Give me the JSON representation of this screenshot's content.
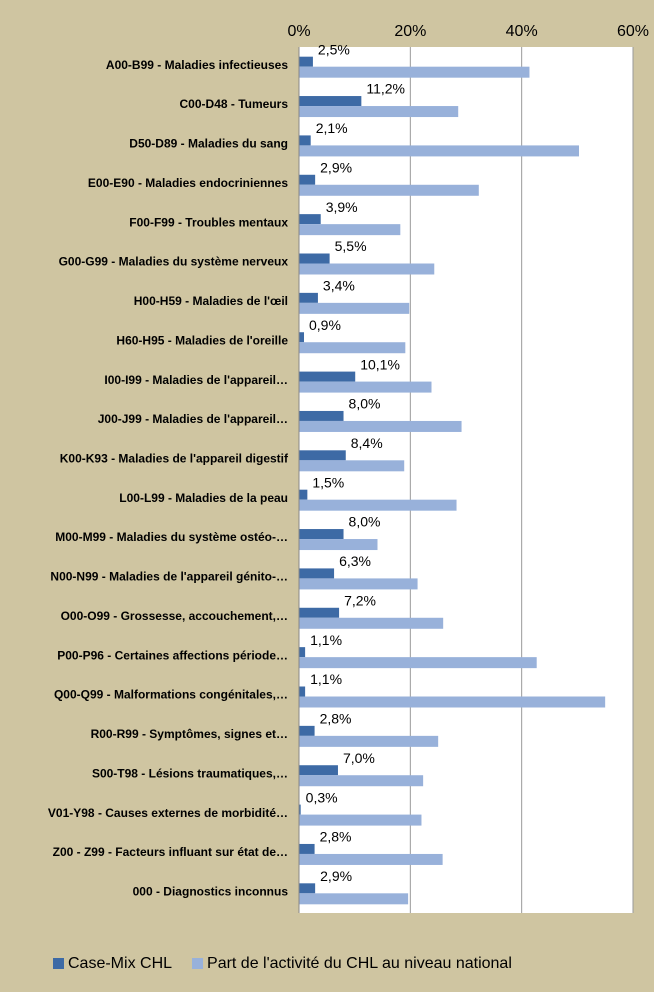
{
  "chart_data": {
    "type": "barh",
    "categories": [
      "A00-B99 - Maladies infectieuses",
      "C00-D48 - Tumeurs",
      "D50-D89 - Maladies du sang",
      "E00-E90 - Maladies endocriniennes",
      "F00-F99 - Troubles mentaux",
      "G00-G99 - Maladies du système nerveux",
      "H00-H59 - Maladies de l'œil",
      "H60-H95 - Maladies de l'oreille",
      "I00-I99 - Maladies de l'appareil…",
      "J00-J99 - Maladies de l'appareil…",
      "K00-K93 - Maladies de l'appareil digestif",
      "L00-L99 - Maladies de la peau",
      "M00-M99 - Maladies du système ostéo-…",
      "N00-N99 - Maladies de l'appareil génito-…",
      "O00-O99 - Grossesse, accouchement,…",
      "P00-P96 - Certaines affections période…",
      "Q00-Q99 - Malformations congénitales,…",
      "R00-R99 - Symptômes, signes et…",
      "S00-T98 - Lésions traumatiques,…",
      "V01-Y98 - Causes externes de morbidité…",
      "Z00 - Z99 - Facteurs influant sur état de…",
      "000 - Diagnostics inconnus"
    ],
    "series": [
      {
        "name": "Case-Mix CHL",
        "color": "#3d6aa5",
        "values": [
          2.5,
          11.2,
          2.1,
          2.9,
          3.9,
          5.5,
          3.4,
          0.9,
          10.1,
          8.0,
          8.4,
          1.5,
          8.0,
          6.3,
          7.2,
          1.1,
          1.1,
          2.8,
          7.0,
          0.3,
          2.8,
          2.9
        ],
        "value_labels": [
          "2,5%",
          "11,2%",
          "2,1%",
          "2,9%",
          "3,9%",
          "5,5%",
          "3,4%",
          "0,9%",
          "10,1%",
          "8,0%",
          "8,4%",
          "1,5%",
          "8,0%",
          "6,3%",
          "7,2%",
          "1,1%",
          "1,1%",
          "2,8%",
          "7,0%",
          "0,3%",
          "2,8%",
          "2,9%"
        ]
      },
      {
        "name": "Part de l'activité du CHL au niveau national",
        "color": "#98b1da",
        "values": [
          41.4,
          28.6,
          50.3,
          32.3,
          18.2,
          24.3,
          19.8,
          19.1,
          23.8,
          29.2,
          18.9,
          28.3,
          14.1,
          21.3,
          25.9,
          42.7,
          55.0,
          25.0,
          22.3,
          22.0,
          25.8,
          19.6
        ]
      }
    ],
    "xlim": [
      0,
      60
    ],
    "xticks": [
      {
        "value": 0,
        "label": "0%"
      },
      {
        "value": 20,
        "label": "20%"
      },
      {
        "value": 40,
        "label": "40%"
      },
      {
        "value": 60,
        "label": "60%"
      }
    ],
    "grid": true,
    "legend": "bottom"
  }
}
